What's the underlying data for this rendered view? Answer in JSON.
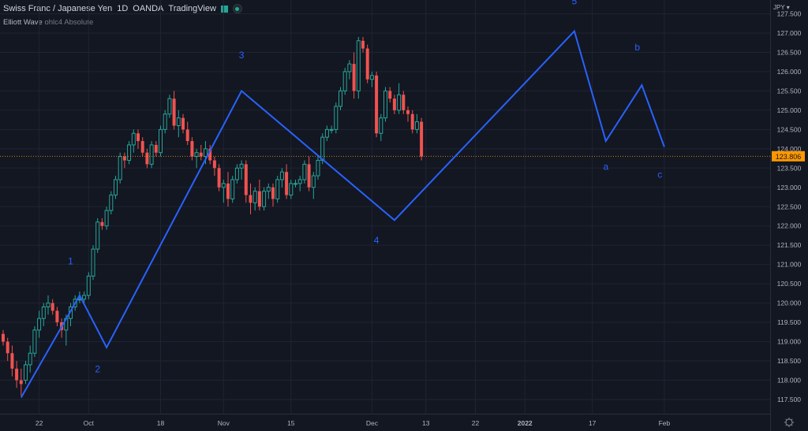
{
  "header": {
    "symbol": "Swiss Franc / Japanese Yen",
    "interval": "1D",
    "exchange": "OANDA",
    "platform": "TradingView"
  },
  "indicator": {
    "name": "Elliott Wave",
    "params": "ohlc4 Absolute"
  },
  "price_axis": {
    "currency": "JPY"
  },
  "colors": {
    "background": "#131722",
    "up": "#26a69a",
    "down": "#ef5350",
    "wave": "#2962ff",
    "last_price": "#ff9800"
  },
  "chart_data": {
    "type": "candlestick",
    "ylim": [
      117.5,
      128.0
    ],
    "y_ticks": [
      117.5,
      118,
      118.5,
      119,
      119.5,
      120,
      120.5,
      121,
      121.5,
      122,
      122.5,
      123,
      123.5,
      124,
      124.5,
      125,
      125.5,
      126,
      126.5,
      127,
      127.5,
      128
    ],
    "x_tick_labels": [
      {
        "label": "22",
        "bar": 8
      },
      {
        "label": "Oct",
        "bar": 19
      },
      {
        "label": "18",
        "bar": 35
      },
      {
        "label": "Nov",
        "bar": 49
      },
      {
        "label": "15",
        "bar": 64
      },
      {
        "label": "Dec",
        "bar": 82
      },
      {
        "label": "13",
        "bar": 94
      },
      {
        "label": "22",
        "bar": 105
      },
      {
        "label": "2022",
        "bar": 116
      },
      {
        "label": "17",
        "bar": 131
      },
      {
        "label": "Feb",
        "bar": 147
      }
    ],
    "last_price": 123.806,
    "last_price_label": "123.806",
    "bars": [
      [
        119.2,
        119.3,
        118.9,
        119.0
      ],
      [
        119.0,
        119.1,
        118.5,
        118.7
      ],
      [
        118.7,
        118.9,
        118.1,
        118.3
      ],
      [
        118.3,
        118.5,
        117.8,
        118.0
      ],
      [
        118.0,
        118.3,
        117.6,
        117.9
      ],
      [
        118.0,
        118.5,
        117.9,
        118.4
      ],
      [
        118.4,
        118.9,
        118.2,
        118.7
      ],
      [
        118.7,
        119.4,
        118.6,
        119.3
      ],
      [
        119.3,
        119.8,
        119.1,
        119.6
      ],
      [
        119.6,
        120.0,
        119.4,
        119.9
      ],
      [
        119.9,
        120.2,
        119.7,
        120.0
      ],
      [
        120.0,
        120.1,
        119.7,
        119.8
      ],
      [
        119.8,
        119.9,
        119.4,
        119.5
      ],
      [
        119.5,
        119.6,
        119.1,
        119.3
      ],
      [
        119.3,
        119.7,
        118.9,
        119.6
      ],
      [
        119.6,
        120.0,
        119.4,
        119.9
      ],
      [
        119.9,
        120.2,
        119.8,
        120.1
      ],
      [
        120.1,
        120.3,
        120.0,
        120.1
      ],
      [
        120.1,
        120.3,
        120.0,
        120.2
      ],
      [
        120.2,
        120.8,
        120.1,
        120.7
      ],
      [
        120.7,
        121.5,
        120.6,
        121.4
      ],
      [
        121.4,
        122.2,
        121.3,
        122.1
      ],
      [
        122.1,
        122.2,
        121.9,
        122.0
      ],
      [
        122.0,
        122.5,
        121.9,
        122.4
      ],
      [
        122.4,
        122.9,
        122.3,
        122.8
      ],
      [
        122.8,
        123.3,
        122.7,
        123.2
      ],
      [
        123.2,
        123.9,
        123.1,
        123.8
      ],
      [
        123.8,
        123.9,
        123.5,
        123.7
      ],
      [
        123.7,
        124.2,
        123.6,
        124.1
      ],
      [
        124.1,
        124.5,
        123.9,
        124.4
      ],
      [
        124.4,
        124.5,
        124.0,
        124.2
      ],
      [
        124.2,
        124.3,
        123.8,
        123.9
      ],
      [
        123.9,
        124.0,
        123.5,
        123.6
      ],
      [
        123.6,
        124.2,
        123.5,
        124.1
      ],
      [
        124.1,
        124.2,
        123.8,
        123.9
      ],
      [
        123.9,
        124.6,
        123.8,
        124.5
      ],
      [
        124.5,
        125.0,
        124.4,
        124.9
      ],
      [
        124.9,
        125.4,
        124.8,
        125.3
      ],
      [
        125.3,
        125.5,
        124.5,
        124.6
      ],
      [
        124.6,
        125.0,
        124.3,
        124.8
      ],
      [
        124.8,
        124.9,
        124.4,
        124.5
      ],
      [
        124.5,
        124.7,
        124.1,
        124.2
      ],
      [
        124.2,
        124.3,
        123.7,
        123.8
      ],
      [
        123.8,
        124.0,
        123.5,
        123.9
      ],
      [
        123.9,
        124.1,
        123.7,
        123.8
      ],
      [
        123.8,
        124.2,
        123.6,
        124.0
      ],
      [
        124.0,
        124.1,
        123.6,
        123.7
      ],
      [
        123.7,
        123.8,
        123.3,
        123.5
      ],
      [
        123.5,
        123.6,
        122.9,
        123.0
      ],
      [
        123.0,
        123.2,
        122.6,
        123.1
      ],
      [
        123.1,
        123.4,
        122.5,
        122.7
      ],
      [
        122.7,
        123.3,
        122.6,
        123.2
      ],
      [
        123.2,
        123.6,
        123.1,
        123.5
      ],
      [
        123.5,
        123.7,
        123.2,
        123.6
      ],
      [
        123.6,
        123.7,
        122.6,
        122.8
      ],
      [
        122.8,
        123.1,
        122.3,
        122.6
      ],
      [
        122.6,
        123.0,
        122.4,
        122.9
      ],
      [
        122.9,
        123.2,
        122.4,
        122.5
      ],
      [
        122.5,
        123.0,
        122.4,
        122.9
      ],
      [
        122.9,
        123.1,
        122.7,
        123.0
      ],
      [
        123.0,
        123.1,
        122.5,
        122.7
      ],
      [
        122.7,
        123.3,
        122.6,
        123.2
      ],
      [
        123.2,
        123.5,
        123.0,
        123.4
      ],
      [
        123.4,
        123.6,
        122.7,
        122.8
      ],
      [
        122.8,
        123.2,
        122.7,
        123.1
      ],
      [
        123.1,
        123.2,
        123.0,
        123.1
      ],
      [
        123.1,
        123.3,
        122.9,
        123.2
      ],
      [
        123.2,
        123.7,
        123.1,
        123.6
      ],
      [
        123.6,
        123.8,
        122.9,
        123.0
      ],
      [
        123.0,
        123.4,
        122.7,
        123.3
      ],
      [
        123.3,
        123.8,
        123.2,
        123.7
      ],
      [
        123.7,
        124.4,
        123.6,
        124.3
      ],
      [
        124.3,
        124.6,
        124.2,
        124.5
      ],
      [
        124.5,
        124.6,
        124.4,
        124.5
      ],
      [
        124.5,
        125.2,
        124.4,
        125.1
      ],
      [
        125.1,
        125.6,
        125.0,
        125.5
      ],
      [
        125.5,
        126.1,
        125.4,
        126.0
      ],
      [
        126.0,
        126.3,
        125.8,
        126.2
      ],
      [
        126.2,
        126.5,
        125.3,
        125.5
      ],
      [
        125.5,
        126.9,
        125.3,
        126.8
      ],
      [
        126.8,
        126.9,
        126.5,
        126.6
      ],
      [
        126.6,
        126.7,
        125.7,
        125.8
      ],
      [
        125.8,
        126.0,
        125.6,
        125.9
      ],
      [
        125.9,
        126.0,
        124.3,
        124.4
      ],
      [
        124.4,
        124.9,
        124.2,
        124.8
      ],
      [
        124.8,
        125.6,
        124.7,
        125.5
      ],
      [
        125.5,
        125.6,
        125.2,
        125.3
      ],
      [
        125.3,
        125.4,
        124.9,
        125.0
      ],
      [
        125.0,
        125.7,
        124.9,
        125.4
      ],
      [
        125.4,
        125.5,
        124.9,
        125.0
      ],
      [
        125.0,
        125.1,
        124.7,
        124.9
      ],
      [
        124.9,
        125.0,
        124.4,
        124.5
      ],
      [
        124.5,
        124.9,
        124.4,
        124.7
      ],
      [
        124.7,
        124.8,
        123.7,
        123.8
      ]
    ],
    "wave_points": [
      {
        "bar": 4,
        "price": 117.55
      },
      {
        "bar": 17,
        "price": 120.2
      },
      {
        "bar": 23,
        "price": 118.85
      },
      {
        "bar": 53,
        "price": 125.5
      },
      {
        "bar": 87,
        "price": 122.15
      },
      {
        "bar": 127,
        "price": 127.05
      },
      {
        "bar": 134,
        "price": 124.2
      },
      {
        "bar": 142,
        "price": 125.65
      },
      {
        "bar": 147,
        "price": 124.05
      }
    ],
    "wave_labels": [
      {
        "text": "1",
        "bar": 15,
        "price": 121.0
      },
      {
        "text": "2",
        "bar": 21,
        "price": 118.2
      },
      {
        "text": "3",
        "bar": 53,
        "price": 126.35
      },
      {
        "text": "4",
        "bar": 83,
        "price": 121.55
      },
      {
        "text": "5",
        "bar": 127,
        "price": 127.75
      },
      {
        "text": "a",
        "bar": 134,
        "price": 123.45
      },
      {
        "text": "b",
        "bar": 141,
        "price": 126.55
      },
      {
        "text": "c",
        "bar": 146,
        "price": 123.25
      }
    ]
  }
}
